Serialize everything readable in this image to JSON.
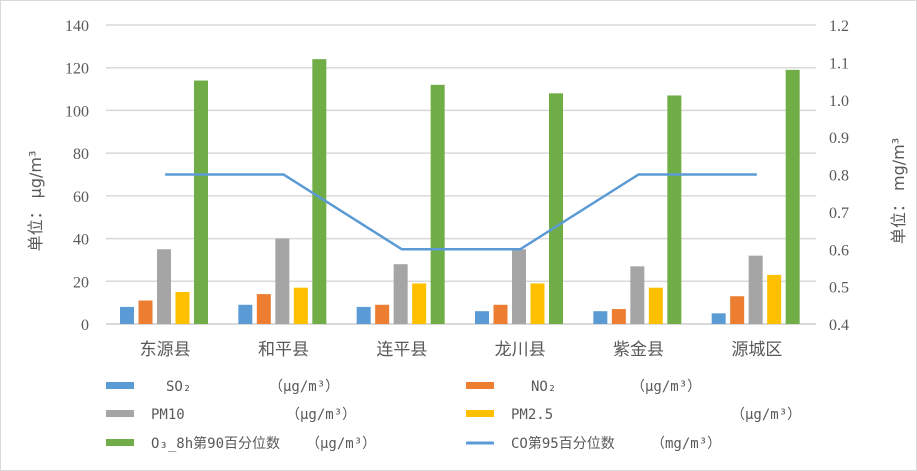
{
  "chart_data": {
    "type": "bar",
    "categories": [
      "东源县",
      "和平县",
      "连平县",
      "龙川县",
      "紫金县",
      "源城区"
    ],
    "ylabel": "单位： μg/m³",
    "y2label": "单位： mg/m³",
    "ylim": [
      0,
      140
    ],
    "yticks": [
      0,
      20,
      40,
      60,
      80,
      100,
      120,
      140
    ],
    "y2lim": [
      0.4,
      1.2
    ],
    "y2ticks": [
      "0.4",
      "0.5",
      "0.6",
      "0.7",
      "0.8",
      "0.9",
      "1.0",
      "1.1",
      "1.2"
    ],
    "grid": true,
    "legend": "bottom",
    "series": [
      {
        "name": "SO₂",
        "unit": "（μg/m³）",
        "color": "#5b9bd5",
        "values": [
          8,
          9,
          8,
          6,
          6,
          5
        ]
      },
      {
        "name": "NO₂",
        "unit": "（μg/m³）",
        "color": "#ed7d31",
        "values": [
          11,
          14,
          9,
          9,
          7,
          13
        ]
      },
      {
        "name": "PM10",
        "unit": "（μg/m³）",
        "color": "#a5a5a5",
        "values": [
          35,
          40,
          28,
          35,
          27,
          32
        ]
      },
      {
        "name": "PM2.5",
        "unit": "（μg/m³）",
        "color": "#ffc000",
        "values": [
          15,
          17,
          19,
          19,
          17,
          23
        ]
      },
      {
        "name": "O₃_8h第90百分位数",
        "unit": "（μg/m³）",
        "color": "#70ad47",
        "values": [
          114,
          124,
          112,
          108,
          107,
          119
        ]
      },
      {
        "name": "CO第95百分位数",
        "unit": "（mg/m³）",
        "color": "#5b9bd5",
        "type": "line",
        "axis": "right",
        "values": [
          0.8,
          0.8,
          0.6,
          0.6,
          0.8,
          0.8
        ]
      }
    ]
  }
}
